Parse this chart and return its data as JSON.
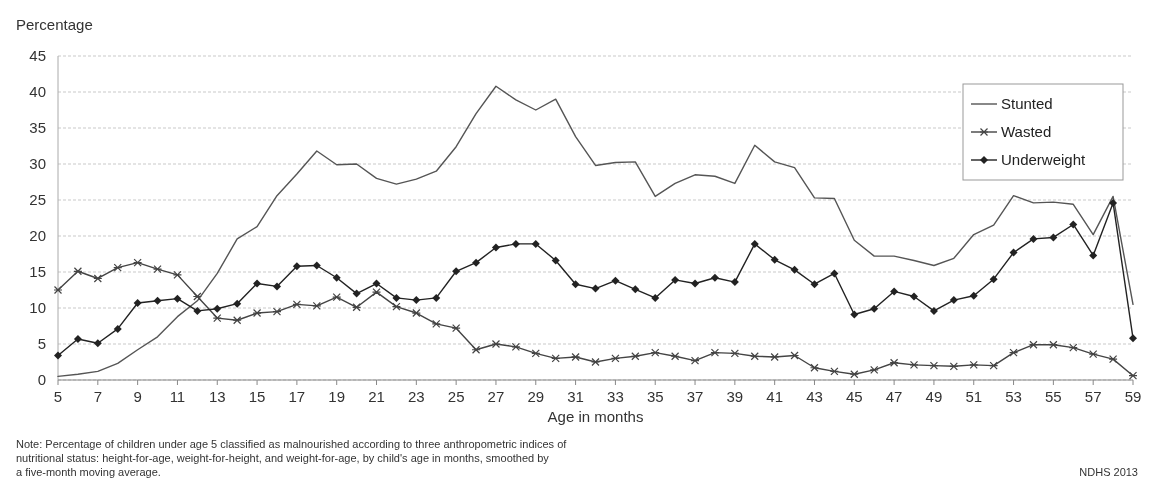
{
  "chart_data": {
    "type": "line",
    "ylabel": "Percentage",
    "xlabel": "Age in months",
    "x": [
      5,
      6,
      7,
      8,
      9,
      10,
      11,
      12,
      13,
      14,
      15,
      16,
      17,
      18,
      19,
      20,
      21,
      22,
      23,
      24,
      25,
      26,
      27,
      28,
      29,
      30,
      31,
      32,
      33,
      34,
      35,
      36,
      37,
      38,
      39,
      40,
      41,
      42,
      43,
      44,
      45,
      46,
      47,
      48,
      49,
      50,
      51,
      52,
      53,
      54,
      55,
      56,
      57,
      58,
      59
    ],
    "xlim": [
      5,
      59
    ],
    "xticks": [
      5,
      7,
      9,
      11,
      13,
      15,
      17,
      19,
      21,
      23,
      25,
      27,
      29,
      31,
      33,
      35,
      37,
      39,
      41,
      43,
      45,
      47,
      49,
      51,
      53,
      55,
      57,
      59
    ],
    "ylim": [
      0,
      45
    ],
    "yticks": [
      0,
      5,
      10,
      15,
      20,
      25,
      30,
      35,
      40,
      45
    ],
    "grid": "y",
    "legend": "top right",
    "series": [
      {
        "name": "Stunted",
        "color": "#555555",
        "marker": "none",
        "values": [
          0.5,
          0.8,
          1.2,
          2.3,
          4.2,
          6.0,
          8.8,
          11.0,
          14.8,
          19.6,
          21.3,
          25.6,
          28.6,
          31.8,
          29.9,
          30.0,
          28.0,
          27.2,
          27.9,
          29.0,
          32.4,
          37.0,
          40.8,
          38.9,
          37.5,
          39.0,
          33.8,
          29.8,
          30.2,
          30.3,
          25.5,
          27.3,
          28.5,
          28.3,
          27.3,
          32.6,
          30.3,
          29.5,
          25.3,
          25.2,
          19.4,
          17.2,
          17.2,
          16.6,
          15.9,
          16.9,
          20.2,
          21.5,
          25.6,
          24.6,
          24.7,
          24.4,
          20.2,
          25.5,
          10.5
        ]
      },
      {
        "name": "Wasted",
        "color": "#444444",
        "marker": "cross",
        "values": [
          12.5,
          15.1,
          14.1,
          15.6,
          16.3,
          15.4,
          14.6,
          11.6,
          8.6,
          8.3,
          9.3,
          9.5,
          10.5,
          10.3,
          11.5,
          10.1,
          12.2,
          10.2,
          9.3,
          7.8,
          7.2,
          4.2,
          5.0,
          4.6,
          3.7,
          3.0,
          3.2,
          2.5,
          3.0,
          3.3,
          3.8,
          3.3,
          2.7,
          3.8,
          3.7,
          3.3,
          3.2,
          3.4,
          1.7,
          1.2,
          0.8,
          1.4,
          2.4,
          2.1,
          2.0,
          1.9,
          2.1,
          2.0,
          3.8,
          4.9,
          4.9,
          4.5,
          3.6,
          2.9,
          0.6
        ]
      },
      {
        "name": "Underweight",
        "color": "#222222",
        "marker": "diamond",
        "values": [
          3.4,
          5.7,
          5.1,
          7.1,
          10.7,
          11.0,
          11.3,
          9.6,
          9.9,
          10.6,
          13.4,
          13.0,
          15.8,
          15.9,
          14.2,
          12.0,
          13.4,
          11.4,
          11.1,
          11.4,
          15.1,
          16.3,
          18.4,
          18.9,
          18.9,
          16.6,
          13.3,
          12.7,
          13.8,
          12.6,
          11.4,
          13.9,
          13.4,
          14.2,
          13.6,
          18.9,
          16.7,
          15.3,
          13.3,
          14.8,
          9.1,
          9.9,
          12.3,
          11.6,
          9.6,
          11.1,
          11.7,
          14.0,
          17.7,
          19.6,
          19.8,
          21.6,
          17.3,
          24.6,
          5.8
        ]
      }
    ],
    "annotations": [
      "Note: Percentage of children under age 5 classified as malnourished according to three anthropometric indices of nutritional status: height-for-age, weight-for-height, and weight-for-age, by child's age in months, smoothed by a five-month moving average.",
      "NDHS 2013"
    ]
  }
}
